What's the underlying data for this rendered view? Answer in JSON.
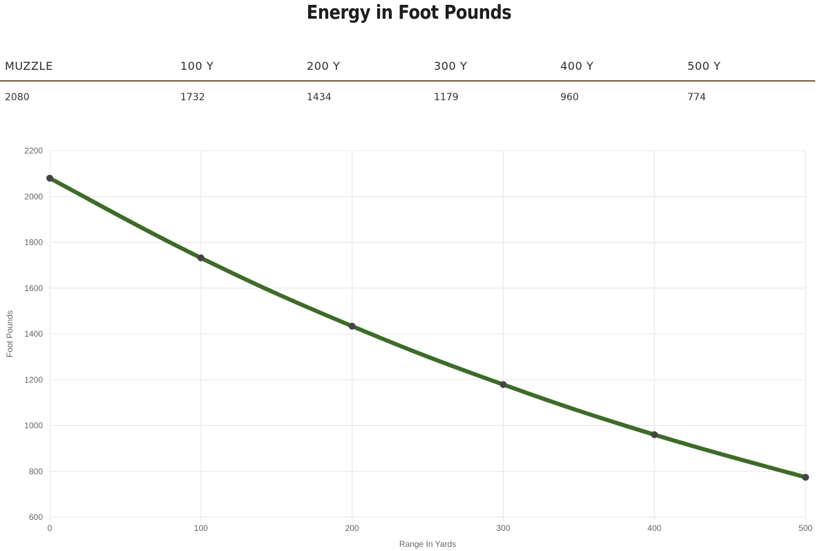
{
  "title": "Energy in Foot Pounds",
  "table": {
    "headers": [
      "MUZZLE",
      "100 Y",
      "200 Y",
      "300 Y",
      "400 Y",
      "500 Y"
    ],
    "values": [
      "2080",
      "1732",
      "1434",
      "1179",
      "960",
      "774"
    ]
  },
  "colors": {
    "line": "#3d6b2a",
    "point": "#444444",
    "grid": "#e6e6e6",
    "rule": "#7a5a3a"
  },
  "chart_data": {
    "type": "line",
    "title": "",
    "xlabel": "Range In Yards",
    "ylabel": "Foot Pounds",
    "xlim": [
      0,
      500
    ],
    "ylim": [
      600,
      2200
    ],
    "x_ticks": [
      0,
      100,
      200,
      300,
      400,
      500
    ],
    "y_ticks": [
      600,
      800,
      1000,
      1200,
      1400,
      1600,
      1800,
      2000,
      2200
    ],
    "grid": true,
    "series": [
      {
        "x": [
          0,
          100,
          200,
          300,
          400,
          500
        ],
        "values": [
          2080,
          1732,
          1434,
          1179,
          960,
          774
        ]
      }
    ]
  }
}
